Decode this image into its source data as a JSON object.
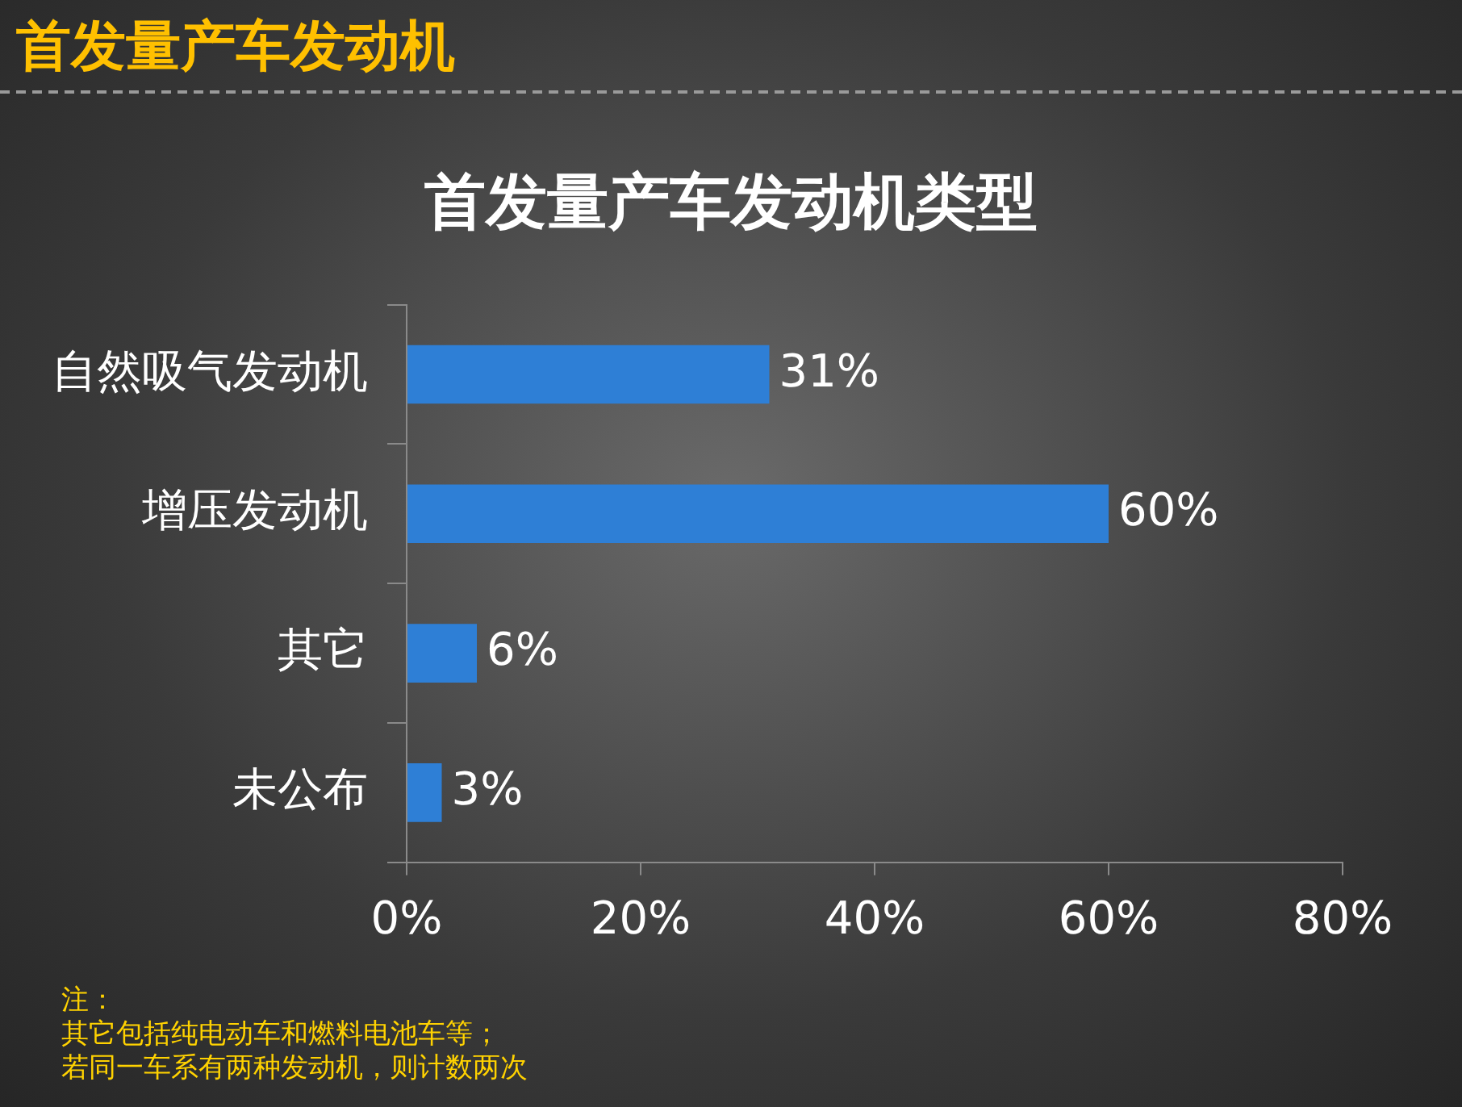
{
  "chart_data": {
    "type": "bar",
    "orientation": "horizontal",
    "title": "首发量产车发动机",
    "subtitle": "首发量产车发动机类型",
    "categories": [
      "自然吸气发动机",
      "增压发动机",
      "其它",
      "未公布"
    ],
    "values": [
      31,
      60,
      6,
      3
    ],
    "color": "#2e7fd6",
    "value_labels": [
      "31%",
      "60%",
      "6%",
      "3%"
    ],
    "xlim": [
      0,
      80
    ],
    "xticks": [
      {
        "value": 0,
        "label": "0%"
      },
      {
        "value": 20,
        "label": "20%"
      },
      {
        "value": 40,
        "label": "40%"
      },
      {
        "value": 60,
        "label": "60%"
      },
      {
        "value": 80,
        "label": "80%"
      }
    ],
    "grid": false,
    "legend": false,
    "annotations": [
      "注：",
      "其它包括纯电动车和燃料电池车等；",
      "若同一车系有两种发动机，则计数两次"
    ]
  }
}
